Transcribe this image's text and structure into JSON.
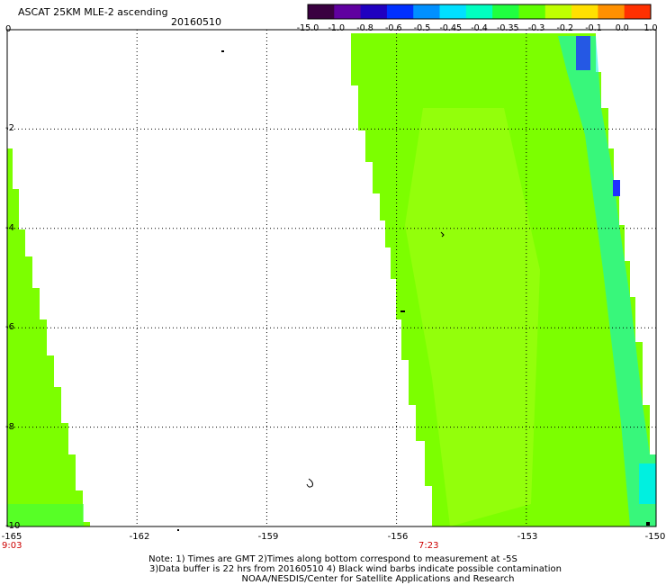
{
  "title": "ASCAT 25KM MLE-2 ascending",
  "date": "20160510",
  "colorbar": {
    "labels": [
      "-15.0",
      "-1.0",
      "-0.8",
      "-0.6",
      "-0.5",
      "-0.45",
      "-0.4",
      "-0.35",
      "-0.3",
      "-0.2",
      "-0.1",
      "0.0",
      "1.0"
    ],
    "colors": [
      "#3a0040",
      "#6000a0",
      "#2000c0",
      "#0030ff",
      "#0090ff",
      "#00e0ff",
      "#00ffc0",
      "#20ff40",
      "#60ff00",
      "#c0ff00",
      "#ffe000",
      "#ff9000",
      "#ff3000"
    ]
  },
  "map": {
    "lat_labels": [
      "0",
      "-2",
      "-4",
      "-6",
      "-8",
      "-10"
    ],
    "lon_labels": [
      "-165",
      "-162",
      "-159",
      "-156",
      "-153",
      "-150"
    ],
    "lat_range": [
      -10,
      0
    ],
    "lon_range": [
      -165,
      -150
    ],
    "swath_colors": {
      "main": "#7cff00",
      "light": "#9cff10",
      "cyan": "#00f0e0",
      "blue": "#2030ff",
      "green": "#40ff40"
    }
  },
  "times": {
    "left": "9:03",
    "right": "7:23"
  },
  "notes": [
    "Note: 1) Times are GMT 2)Times along bottom correspond to measurement at -5S",
    "3)Data buffer is 22 hrs from 20160510 4) Black wind barbs indicate possible contamination",
    "NOAA/NESDIS/Center for Satellite Applications and Research"
  ]
}
